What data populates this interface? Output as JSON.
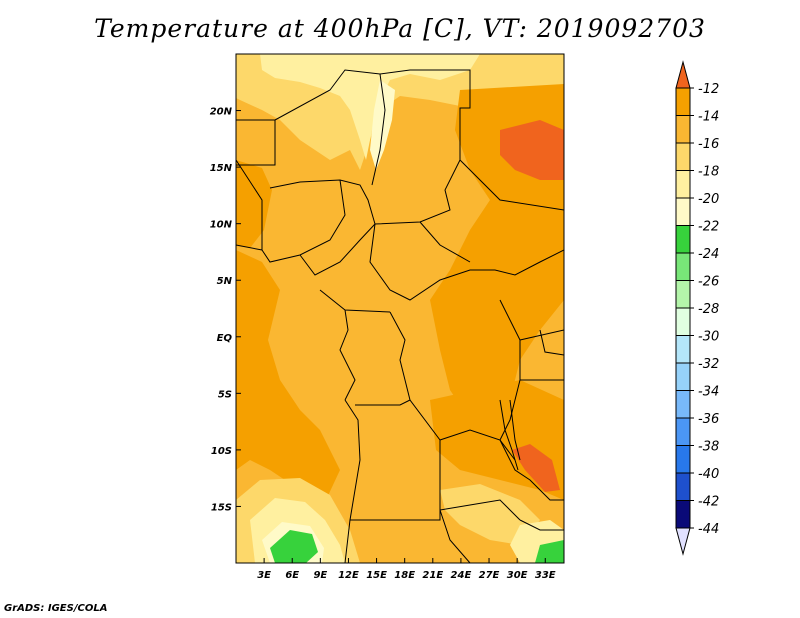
{
  "title": "Temperature at 400hPa [C], VT: 2019092703",
  "credit": "GrADS: IGES/COLA",
  "map": {
    "lon_range": [
      0,
      35
    ],
    "lat_range": [
      -20,
      25
    ],
    "x_ticks": [
      {
        "value": 3,
        "label": "3E"
      },
      {
        "value": 6,
        "label": "6E"
      },
      {
        "value": 9,
        "label": "9E"
      },
      {
        "value": 12,
        "label": "12E"
      },
      {
        "value": 15,
        "label": "15E"
      },
      {
        "value": 18,
        "label": "18E"
      },
      {
        "value": 21,
        "label": "21E"
      },
      {
        "value": 24,
        "label": "24E"
      },
      {
        "value": 27,
        "label": "27E"
      },
      {
        "value": 30,
        "label": "30E"
      },
      {
        "value": 33,
        "label": "33E"
      }
    ],
    "y_ticks": [
      {
        "value": 20,
        "label": "20N"
      },
      {
        "value": 15,
        "label": "15N"
      },
      {
        "value": 10,
        "label": "10N"
      },
      {
        "value": 5,
        "label": "5N"
      },
      {
        "value": 0,
        "label": "EQ"
      },
      {
        "value": -5,
        "label": "5S"
      },
      {
        "value": -10,
        "label": "10S"
      },
      {
        "value": -15,
        "label": "15S"
      }
    ]
  },
  "colorbar": {
    "levels": [
      {
        "label": "-12",
        "color": "#f0641e"
      },
      {
        "label": "-14",
        "color": "#f5a000"
      },
      {
        "label": "-16",
        "color": "#fab732"
      },
      {
        "label": "-18",
        "color": "#fdd86a"
      },
      {
        "label": "-20",
        "color": "#fff0a0"
      },
      {
        "label": "-22",
        "color": "#fffac8"
      },
      {
        "label": "-24",
        "color": "#37d23c"
      },
      {
        "label": "-26",
        "color": "#78e678"
      },
      {
        "label": "-28",
        "color": "#b4f5aa"
      },
      {
        "label": "-30",
        "color": "#e1ffe1"
      },
      {
        "label": "-32",
        "color": "#b4e6fa"
      },
      {
        "label": "-34",
        "color": "#96d2fa"
      },
      {
        "label": "-36",
        "color": "#78b9fa"
      },
      {
        "label": "-38",
        "color": "#4b96f5"
      },
      {
        "label": "-40",
        "color": "#2878eb"
      },
      {
        "label": "-42",
        "color": "#1e50cd"
      },
      {
        "label": "-44",
        "color": "#0a0a78"
      }
    ],
    "top_arrow_color": "#f0641e",
    "bottom_arrow_color": "#e1e1ff"
  }
}
